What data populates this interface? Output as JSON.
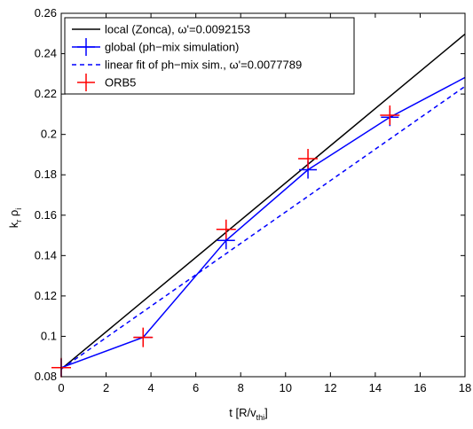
{
  "chart_data": {
    "type": "line",
    "xlabel": "t [R/v",
    "xlabel_sub": "thi",
    "xlabel_close": "]",
    "ylabel": "k",
    "ylabel_sub1": "r",
    "ylabel_mid": " ρ",
    "ylabel_sub2": "i",
    "xlim": [
      0,
      18
    ],
    "ylim": [
      0.08,
      0.26
    ],
    "xticks": [
      0,
      2,
      4,
      6,
      8,
      10,
      12,
      14,
      16,
      18
    ],
    "yticks": [
      0.08,
      0.1,
      0.12,
      0.14,
      0.16,
      0.18,
      0.2,
      0.22,
      0.24,
      0.26
    ],
    "xtick_labels": [
      "0",
      "2",
      "4",
      "6",
      "8",
      "10",
      "12",
      "14",
      "16",
      "18"
    ],
    "ytick_labels": [
      "0.08",
      "0.1",
      "0.12",
      "0.14",
      "0.16",
      "0.18",
      "0.2",
      "0.22",
      "0.24",
      "0.26"
    ],
    "grid": false,
    "legend_position": "top-left",
    "series": [
      {
        "name": "local (Zonca), ω'=0.0092153",
        "style": "solid",
        "color": "#000000",
        "marker": "none",
        "x": [
          0,
          18
        ],
        "y": [
          0.0838,
          0.2497
        ]
      },
      {
        "name": "global (ph−mix simulation)",
        "style": "solid",
        "color": "#0000ff",
        "marker": "+",
        "x": [
          0,
          3.65,
          7.35,
          11.0,
          14.65,
          18
        ],
        "y": [
          0.0845,
          0.0995,
          0.1475,
          0.1825,
          0.2085,
          0.2282
        ]
      },
      {
        "name": "linear fit of ph−mix sim., ω'=0.0077789",
        "style": "dashed",
        "color": "#0000ff",
        "marker": "none",
        "x": [
          0,
          18
        ],
        "y": [
          0.0838,
          0.2238
        ]
      },
      {
        "name": "ORB5",
        "style": "none",
        "color": "#ff0000",
        "marker": "+",
        "x": [
          0,
          3.65,
          7.35,
          11.0,
          14.65
        ],
        "y": [
          0.0845,
          0.0995,
          0.153,
          0.188,
          0.2095
        ]
      }
    ]
  }
}
